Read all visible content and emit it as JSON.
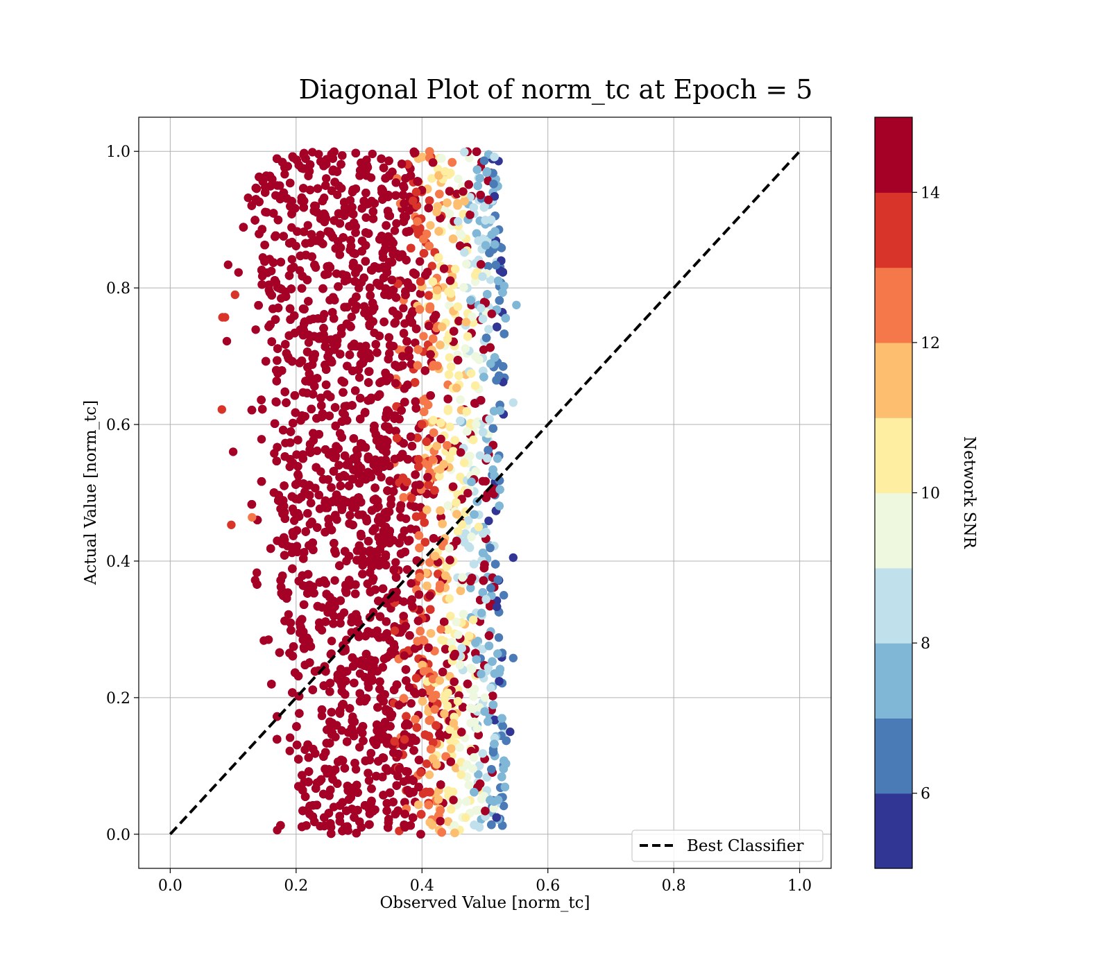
{
  "chart_data": {
    "type": "scatter",
    "title": "Diagonal Plot of norm_tc at Epoch = 5",
    "xlabel": "Observed Value [norm_tc]",
    "ylabel": "Actual Value [norm_tc]",
    "xlim": [
      -0.05,
      1.05
    ],
    "ylim": [
      -0.05,
      1.05
    ],
    "x_ticks": [
      "0.0",
      "0.2",
      "0.4",
      "0.6",
      "0.8",
      "1.0"
    ],
    "y_ticks": [
      "0.0",
      "0.2",
      "0.4",
      "0.6",
      "0.8",
      "1.0"
    ],
    "grid": true,
    "legend": {
      "placement": "lower-right",
      "entries": [
        "Best Classifier"
      ]
    },
    "reference_line": {
      "name": "Best Classifier",
      "x": [
        0.0,
        1.0
      ],
      "y": [
        0.0,
        1.0
      ],
      "style": "dashed",
      "color": "#000000"
    },
    "colorbar": {
      "label": "Network SNR",
      "range": [
        5,
        15
      ],
      "tick_labels": [
        "6",
        "8",
        "10",
        "12",
        "14"
      ],
      "bins": [
        {
          "lo": 5,
          "hi": 6,
          "color": "#313695"
        },
        {
          "lo": 6,
          "hi": 7,
          "color": "#4a7bb7"
        },
        {
          "lo": 7,
          "hi": 8,
          "color": "#80b6d6"
        },
        {
          "lo": 8,
          "hi": 9,
          "color": "#c0e1ec"
        },
        {
          "lo": 9,
          "hi": 10,
          "color": "#eef8de"
        },
        {
          "lo": 10,
          "hi": 11,
          "color": "#feeea2"
        },
        {
          "lo": 11,
          "hi": 12,
          "color": "#fdbe70"
        },
        {
          "lo": 12,
          "hi": 13,
          "color": "#f4784a"
        },
        {
          "lo": 13,
          "hi": 14,
          "color": "#d93429"
        },
        {
          "lo": 14,
          "hi": 15,
          "color": "#a50026"
        }
      ]
    },
    "points": [
      {
        "x": 0.17,
        "y": 0.95,
        "snr": 15
      },
      {
        "x": 0.22,
        "y": 0.72,
        "snr": 15
      },
      {
        "x": 0.28,
        "y": 0.4,
        "snr": 15
      },
      {
        "x": 0.33,
        "y": 0.15,
        "snr": 15
      },
      {
        "x": 0.36,
        "y": 0.85,
        "snr": 14.5
      },
      {
        "x": 0.4,
        "y": 0.6,
        "snr": 13.2
      },
      {
        "x": 0.43,
        "y": 0.3,
        "snr": 12.6
      },
      {
        "x": 0.45,
        "y": 0.05,
        "snr": 14.2
      },
      {
        "x": 0.47,
        "y": 0.75,
        "snr": 11.6
      },
      {
        "x": 0.49,
        "y": 0.45,
        "snr": 10.6
      },
      {
        "x": 0.5,
        "y": 0.2,
        "snr": 9.6
      },
      {
        "x": 0.51,
        "y": 0.9,
        "snr": 8.6
      },
      {
        "x": 0.52,
        "y": 0.55,
        "snr": 7.5
      },
      {
        "x": 0.53,
        "y": 0.35,
        "snr": 6.5
      },
      {
        "x": 0.54,
        "y": 0.15,
        "snr": 5.5
      },
      {
        "x": 0.545,
        "y": 0.405,
        "snr": 5.5
      },
      {
        "x": 0.55,
        "y": 0.775,
        "snr": 7.5
      },
      {
        "x": 0.545,
        "y": 0.632,
        "snr": 8.5
      },
      {
        "x": 0.545,
        "y": 0.258,
        "snr": 6.5
      },
      {
        "x": 0.082,
        "y": 0.622,
        "snr": 13.5
      },
      {
        "x": 0.083,
        "y": 0.757,
        "snr": 13.5
      },
      {
        "x": 0.087,
        "y": 0.757,
        "snr": 13.5
      },
      {
        "x": 0.097,
        "y": 0.453,
        "snr": 13.5
      },
      {
        "x": 0.09,
        "y": 0.722,
        "snr": 15
      },
      {
        "x": 0.092,
        "y": 0.834,
        "snr": 15
      },
      {
        "x": 0.1,
        "y": 0.56,
        "snr": 15
      },
      {
        "x": 0.103,
        "y": 0.79,
        "snr": 13.5
      },
      {
        "x": 0.13,
        "y": 0.464,
        "snr": 12.5
      },
      {
        "x": 0.135,
        "y": 0.372,
        "snr": 15
      },
      {
        "x": 0.17,
        "y": 0.006,
        "snr": 15
      },
      {
        "x": 0.19,
        "y": 0.122,
        "snr": 15
      },
      {
        "x": 0.504,
        "y": 0.498,
        "snr": 14.5
      }
    ]
  }
}
